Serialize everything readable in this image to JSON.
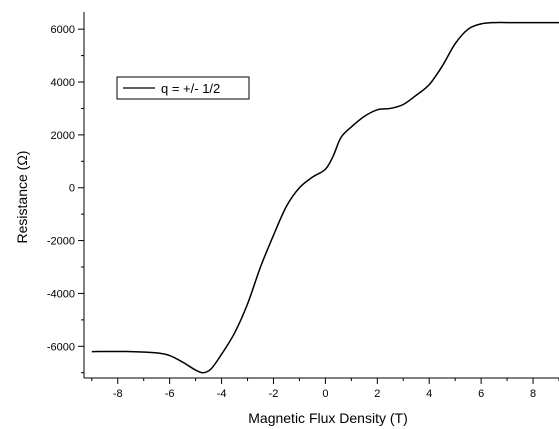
{
  "chart_data": {
    "type": "line",
    "xlabel": "Magnetic Flux Density (T)",
    "ylabel": "Resistance (Ω)",
    "xlim": [
      -9.3,
      9.0
    ],
    "ylim": [
      -7200,
      6650
    ],
    "xticks": [
      -8,
      -6,
      -4,
      -2,
      0,
      2,
      4,
      6,
      8
    ],
    "yticks": [
      -6000,
      -4000,
      -2000,
      0,
      2000,
      4000,
      6000
    ],
    "grid": false,
    "legend_position": "top-left",
    "series": [
      {
        "name": "q = +/- 1/2",
        "color": "#000000",
        "x": [
          -9.0,
          -7.5,
          -6.5,
          -6.0,
          -5.5,
          -5.0,
          -4.7,
          -4.4,
          -4.0,
          -3.5,
          -3.0,
          -2.5,
          -2.0,
          -1.5,
          -1.0,
          -0.5,
          0.0,
          0.3,
          0.6,
          1.0,
          1.5,
          2.0,
          2.5,
          3.0,
          3.5,
          4.0,
          4.5,
          5.0,
          5.5,
          6.0,
          6.5,
          7.0,
          7.5,
          8.0,
          9.0
        ],
        "y": [
          -6200,
          -6200,
          -6250,
          -6350,
          -6600,
          -6900,
          -7000,
          -6850,
          -6300,
          -5500,
          -4400,
          -3000,
          -1800,
          -700,
          0,
          400,
          700,
          1200,
          1900,
          2300,
          2700,
          2950,
          3000,
          3150,
          3500,
          3900,
          4600,
          5450,
          6000,
          6200,
          6250,
          6250,
          6250,
          6250,
          6250
        ]
      }
    ]
  }
}
